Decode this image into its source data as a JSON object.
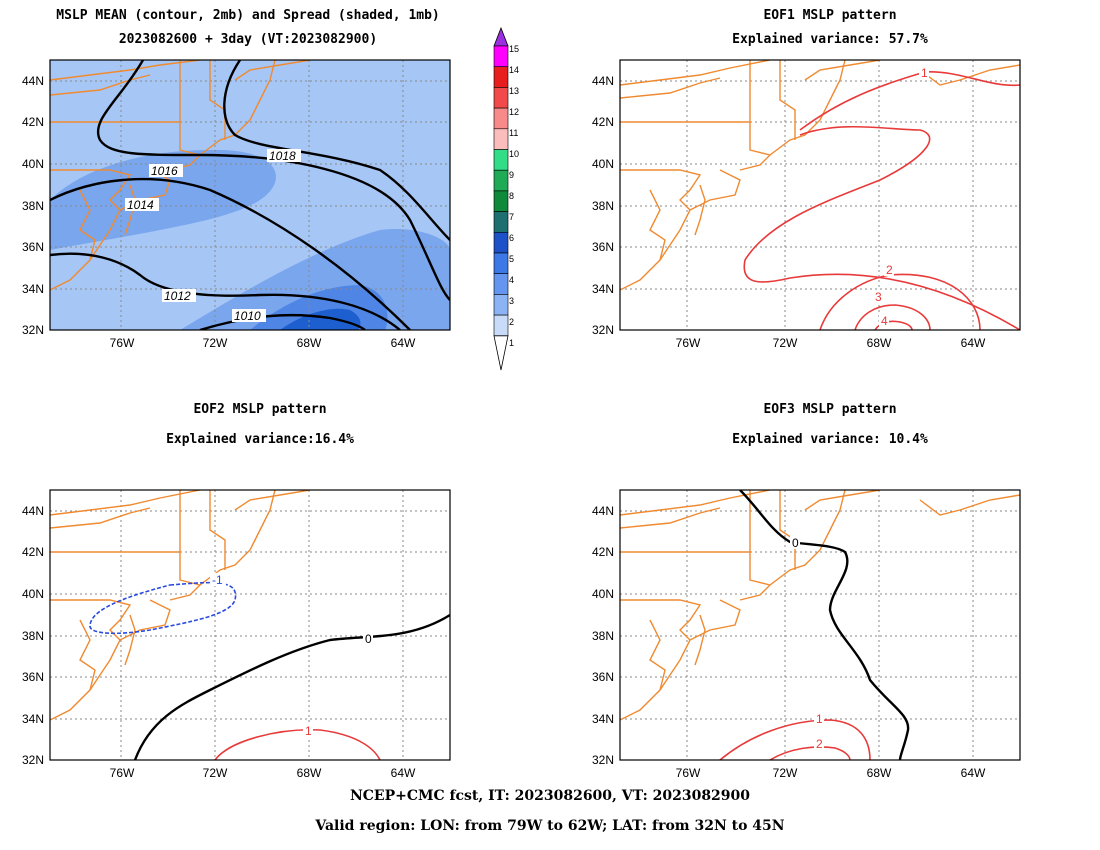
{
  "panels": {
    "mean": {
      "title1": "MSLP MEAN (contour, 2mb) and Spread (shaded, 1mb)",
      "title2": "2023082600 + 3day (VT:2023082900)",
      "contour_labels": [
        "1018",
        "1016",
        "1014",
        "1012",
        "1010"
      ]
    },
    "eof1": {
      "title1": "EOF1 MSLP pattern",
      "title2": "Explained variance: 57.7%",
      "contour_labels": [
        "1",
        "2",
        "3",
        "4"
      ]
    },
    "eof2": {
      "title1": "EOF2 MSLP pattern",
      "title2": "Explained variance:16.4%",
      "contour_labels": [
        "-1",
        "0",
        "1"
      ]
    },
    "eof3": {
      "title1": "EOF3 MSLP pattern",
      "title2": "Explained variance: 10.4%",
      "contour_labels": [
        "0",
        "1",
        "2"
      ]
    }
  },
  "axes": {
    "lat_labels": [
      "44N",
      "42N",
      "40N",
      "38N",
      "36N",
      "34N",
      "32N"
    ],
    "lon_labels": [
      "76W",
      "72W",
      "68W",
      "64W"
    ]
  },
  "colorbar": {
    "labels": [
      "15",
      "14",
      "13",
      "12",
      "11",
      "10",
      "9",
      "8",
      "7",
      "6",
      "5",
      "4",
      "3",
      "2",
      "1"
    ],
    "colors": [
      "#9a30e0",
      "#ff00ff",
      "#e81d1d",
      "#f24a4a",
      "#f88a8a",
      "#fbbcbc",
      "#33dd88",
      "#1faa55",
      "#0f8a3a",
      "#1e7070",
      "#1e50c8",
      "#3c78e6",
      "#6496f0",
      "#8cb4f5",
      "#c8dcfa"
    ]
  },
  "footer": {
    "line1": "NCEP+CMC fcst, IT: 2023082600, VT: 2023082900",
    "line2": "Valid region: LON: from 79W to 62W; LAT: from 32N to 45N"
  }
}
